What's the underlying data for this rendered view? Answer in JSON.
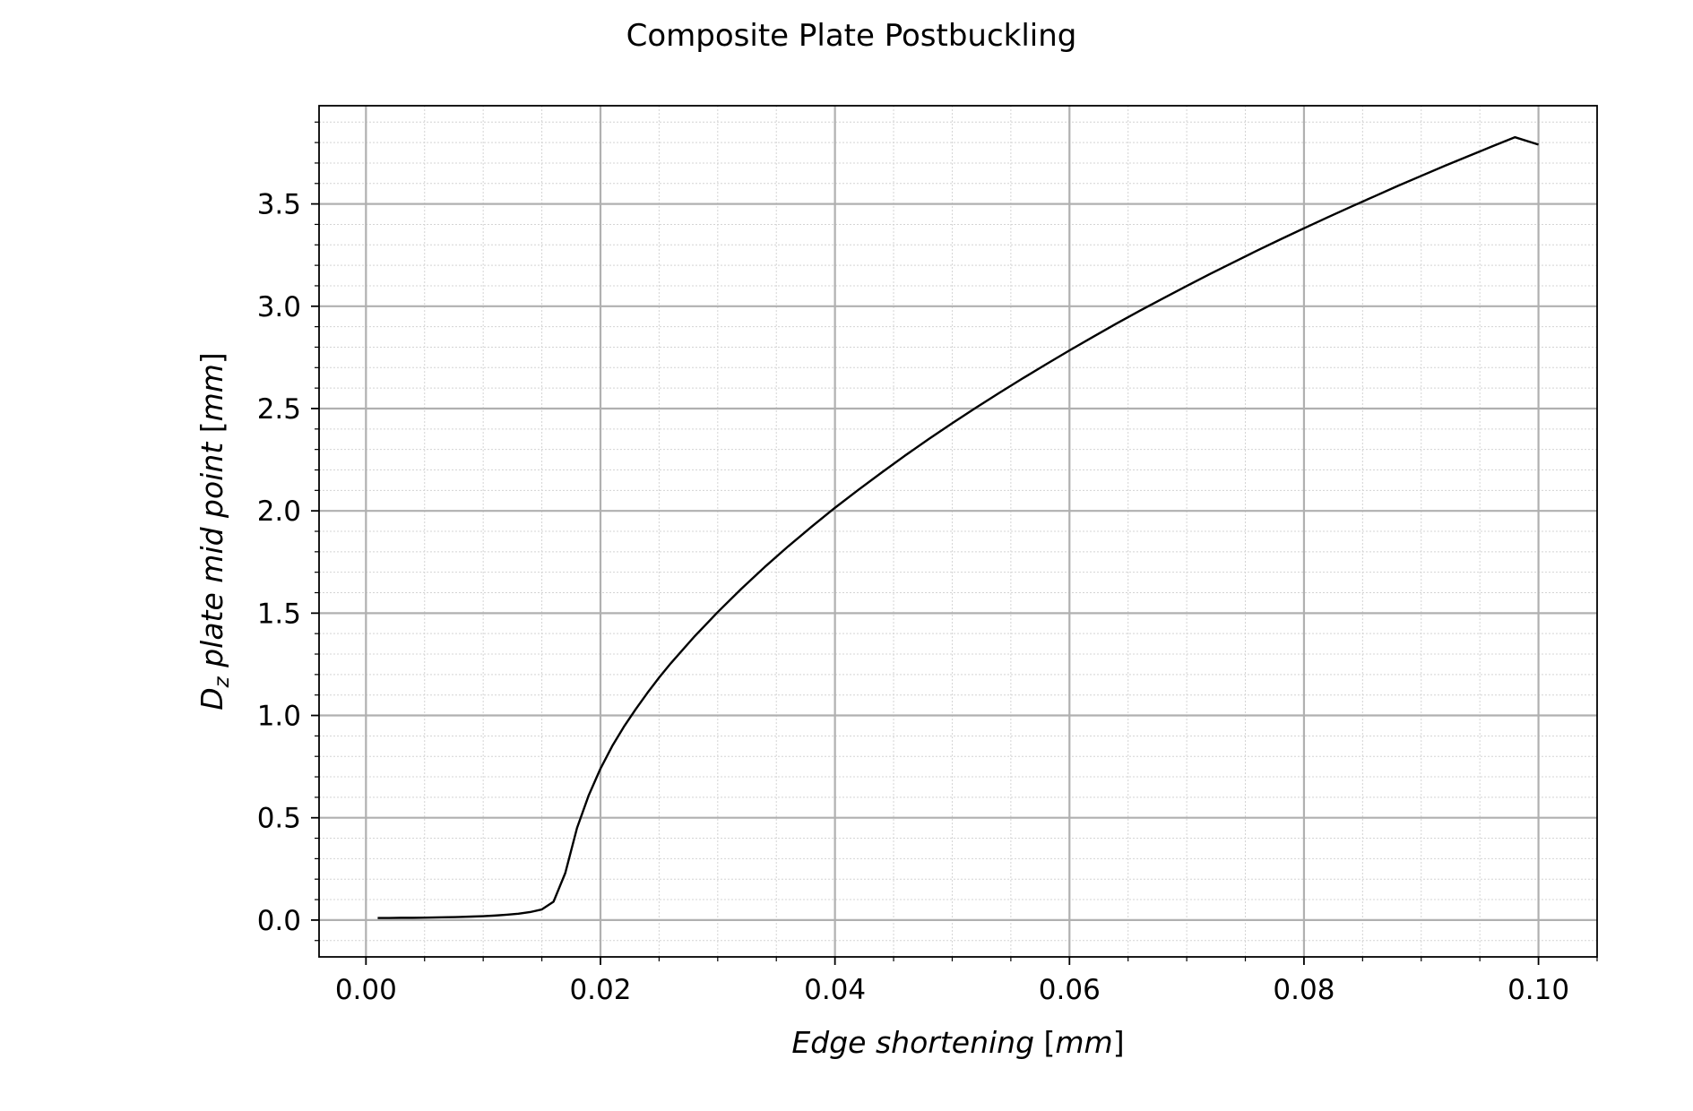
{
  "chart_data": {
    "type": "line",
    "title": "Composite Plate Postbuckling",
    "xlabel": {
      "text": "Edge shortening",
      "bracket_open": "[",
      "unit": "mm",
      "bracket_close": "]"
    },
    "ylabel": {
      "main": "D",
      "sub": "z",
      "text": " plate mid point",
      "bracket_open": "[",
      "unit": "mm",
      "bracket_close": "]"
    },
    "xlim": [
      -0.004,
      0.105
    ],
    "ylim": [
      -0.18,
      3.98
    ],
    "xticks": [
      0.0,
      0.02,
      0.04,
      0.06,
      0.08,
      0.1
    ],
    "xtick_labels": [
      "0.00",
      "0.02",
      "0.04",
      "0.06",
      "0.08",
      "0.10"
    ],
    "yticks": [
      0.0,
      0.5,
      1.0,
      1.5,
      2.0,
      2.5,
      3.0,
      3.5
    ],
    "ytick_labels": [
      "0.0",
      "0.5",
      "1.0",
      "1.5",
      "2.0",
      "2.5",
      "3.0",
      "3.5"
    ],
    "x_minor_step": 0.005,
    "y_minor_step": 0.1,
    "grid": "major and minor",
    "line_color": "#000000",
    "grid_major_color": "#b0b0b0",
    "grid_minor_color": "#d4d4d4",
    "series": [
      {
        "x": [
          0.001,
          0.002,
          0.003,
          0.004,
          0.005,
          0.006,
          0.007,
          0.008,
          0.009,
          0.01,
          0.011,
          0.012,
          0.013,
          0.014,
          0.015,
          0.016,
          0.017,
          0.018,
          0.019,
          0.02,
          0.021,
          0.022,
          0.023,
          0.024,
          0.025,
          0.026,
          0.027,
          0.028,
          0.029,
          0.03,
          0.032,
          0.034,
          0.036,
          0.038,
          0.04,
          0.042,
          0.044,
          0.046,
          0.048,
          0.05,
          0.052,
          0.054,
          0.056,
          0.058,
          0.06,
          0.062,
          0.064,
          0.066,
          0.068,
          0.07,
          0.072,
          0.074,
          0.076,
          0.078,
          0.08,
          0.082,
          0.084,
          0.086,
          0.088,
          0.09,
          0.092,
          0.094,
          0.096,
          0.098,
          0.1
        ],
        "y": [
          0.01,
          0.01,
          0.011,
          0.011,
          0.012,
          0.013,
          0.014,
          0.015,
          0.017,
          0.019,
          0.022,
          0.026,
          0.031,
          0.039,
          0.052,
          0.09,
          0.23,
          0.45,
          0.61,
          0.74,
          0.85,
          0.945,
          1.03,
          1.11,
          1.185,
          1.255,
          1.32,
          1.385,
          1.445,
          1.505,
          1.618,
          1.725,
          1.826,
          1.922,
          2.015,
          2.103,
          2.188,
          2.271,
          2.351,
          2.428,
          2.503,
          2.576,
          2.647,
          2.716,
          2.784,
          2.85,
          2.915,
          2.978,
          3.039,
          3.099,
          3.158,
          3.215,
          3.272,
          3.327,
          3.381,
          3.434,
          3.486,
          3.537,
          3.588,
          3.637,
          3.686,
          3.733,
          3.78,
          3.826,
          3.79
        ]
      }
    ]
  }
}
